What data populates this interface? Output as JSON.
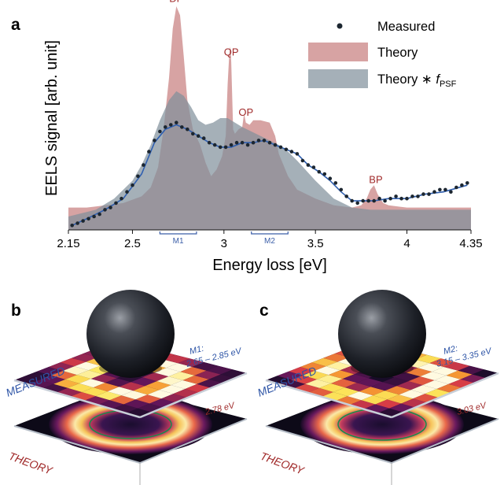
{
  "panels": {
    "a": "a",
    "b": "b",
    "c": "c"
  },
  "chart_data": {
    "type": "line",
    "xlabel": "Energy loss [eV]",
    "ylabel": "EELS signal [arb. unit]",
    "xlim": [
      2.15,
      4.35
    ],
    "ylim": [
      0,
      1
    ],
    "x_ticks": [
      "2.15",
      "2.5",
      "3",
      "3.5",
      "4",
      "4.35"
    ],
    "x_tick_values": [
      2.15,
      2.5,
      3.0,
      3.5,
      4.0,
      4.35
    ],
    "grid": false,
    "legend_position": "top-right",
    "legend": {
      "measured": "Measured",
      "theory": "Theory",
      "theory_psf": "Theory ∗ ",
      "psf_f": "f",
      "psf_sub": "PSF"
    },
    "colors": {
      "theory": "#c98484",
      "theory_alpha": 0.75,
      "psf": "#7f8e9a",
      "psf_alpha": 0.7,
      "fit": "#2f5fb0",
      "measured": "#1c2630",
      "peak_label": "#a02a2a",
      "range": "#3b5ea8"
    },
    "peak_labels": [
      {
        "text": "DP",
        "x": 2.74,
        "y": 1.02
      },
      {
        "text": "QP",
        "x": 3.04,
        "y": 0.78
      },
      {
        "text": "OP",
        "x": 3.12,
        "y": 0.51
      },
      {
        "text": "BP",
        "x": 3.83,
        "y": 0.21
      }
    ],
    "ranges": [
      {
        "label": "M1",
        "from": 2.65,
        "to": 2.85
      },
      {
        "label": "M2",
        "from": 3.15,
        "to": 3.35
      }
    ],
    "series": [
      {
        "name": "Theory",
        "x": [
          2.15,
          2.25,
          2.35,
          2.45,
          2.55,
          2.6,
          2.64,
          2.67,
          2.7,
          2.72,
          2.74,
          2.76,
          2.78,
          2.8,
          2.83,
          2.87,
          2.9,
          2.93,
          2.96,
          2.99,
          3.01,
          3.02,
          3.03,
          3.035,
          3.04,
          3.05,
          3.06,
          3.08,
          3.1,
          3.11,
          3.12,
          3.14,
          3.16,
          3.2,
          3.25,
          3.28,
          3.3,
          3.35,
          3.4,
          3.5,
          3.6,
          3.7,
          3.75,
          3.78,
          3.8,
          3.82,
          3.84,
          3.87,
          3.9,
          4.0,
          4.1,
          4.2,
          4.35
        ],
        "values": [
          0.1,
          0.1,
          0.11,
          0.12,
          0.15,
          0.19,
          0.28,
          0.45,
          0.68,
          0.9,
          1.0,
          0.96,
          0.78,
          0.58,
          0.45,
          0.38,
          0.3,
          0.24,
          0.27,
          0.33,
          0.42,
          0.65,
          0.8,
          0.82,
          0.75,
          0.45,
          0.43,
          0.45,
          0.46,
          0.52,
          0.48,
          0.47,
          0.49,
          0.49,
          0.48,
          0.42,
          0.34,
          0.24,
          0.18,
          0.14,
          0.11,
          0.1,
          0.11,
          0.14,
          0.18,
          0.2,
          0.16,
          0.12,
          0.11,
          0.1,
          0.1,
          0.1,
          0.1
        ]
      },
      {
        "name": "Theory ∗ fPSF",
        "x": [
          2.15,
          2.3,
          2.4,
          2.5,
          2.55,
          2.6,
          2.65,
          2.7,
          2.74,
          2.78,
          2.82,
          2.86,
          2.9,
          2.94,
          2.98,
          3.02,
          3.06,
          3.1,
          3.15,
          3.2,
          3.25,
          3.3,
          3.35,
          3.4,
          3.5,
          3.6,
          3.7,
          3.8,
          3.9,
          4.0,
          4.1,
          4.2,
          4.35
        ],
        "values": [
          0.06,
          0.09,
          0.14,
          0.22,
          0.29,
          0.38,
          0.49,
          0.58,
          0.62,
          0.6,
          0.55,
          0.49,
          0.47,
          0.48,
          0.5,
          0.5,
          0.48,
          0.46,
          0.44,
          0.42,
          0.4,
          0.38,
          0.35,
          0.31,
          0.22,
          0.14,
          0.1,
          0.09,
          0.09,
          0.09,
          0.09,
          0.09,
          0.09
        ]
      },
      {
        "name": "Measured",
        "x": [
          2.17,
          2.2,
          2.23,
          2.26,
          2.29,
          2.32,
          2.35,
          2.38,
          2.41,
          2.44,
          2.47,
          2.5,
          2.53,
          2.56,
          2.59,
          2.62,
          2.65,
          2.68,
          2.71,
          2.74,
          2.77,
          2.8,
          2.83,
          2.86,
          2.89,
          2.92,
          2.95,
          2.98,
          3.01,
          3.04,
          3.07,
          3.1,
          3.13,
          3.16,
          3.19,
          3.22,
          3.25,
          3.28,
          3.31,
          3.34,
          3.37,
          3.4,
          3.43,
          3.46,
          3.49,
          3.52,
          3.55,
          3.58,
          3.61,
          3.64,
          3.67,
          3.7,
          3.73,
          3.76,
          3.79,
          3.82,
          3.85,
          3.88,
          3.91,
          3.94,
          3.97,
          4.0,
          4.03,
          4.06,
          4.09,
          4.12,
          4.15,
          4.18,
          4.21,
          4.24,
          4.27,
          4.3,
          4.33
        ],
        "values": [
          0.02,
          0.03,
          0.04,
          0.05,
          0.06,
          0.07,
          0.09,
          0.1,
          0.12,
          0.14,
          0.17,
          0.2,
          0.24,
          0.29,
          0.35,
          0.4,
          0.44,
          0.46,
          0.47,
          0.48,
          0.46,
          0.45,
          0.43,
          0.42,
          0.41,
          0.39,
          0.38,
          0.37,
          0.37,
          0.38,
          0.39,
          0.39,
          0.38,
          0.39,
          0.4,
          0.4,
          0.39,
          0.38,
          0.37,
          0.36,
          0.35,
          0.34,
          0.31,
          0.29,
          0.28,
          0.26,
          0.25,
          0.23,
          0.21,
          0.18,
          0.15,
          0.13,
          0.12,
          0.13,
          0.13,
          0.13,
          0.14,
          0.13,
          0.14,
          0.15,
          0.14,
          0.14,
          0.15,
          0.15,
          0.16,
          0.16,
          0.17,
          0.18,
          0.18,
          0.17,
          0.19,
          0.2,
          0.21
        ]
      },
      {
        "name": "Fit",
        "x": [
          2.17,
          2.25,
          2.35,
          2.45,
          2.55,
          2.62,
          2.68,
          2.74,
          2.8,
          2.86,
          2.92,
          2.98,
          3.04,
          3.1,
          3.16,
          3.22,
          3.28,
          3.34,
          3.4,
          3.46,
          3.52,
          3.58,
          3.64,
          3.7,
          3.76,
          3.82,
          3.9,
          4.0,
          4.1,
          4.2,
          4.33
        ],
        "values": [
          0.02,
          0.05,
          0.09,
          0.14,
          0.25,
          0.39,
          0.45,
          0.47,
          0.45,
          0.42,
          0.39,
          0.37,
          0.37,
          0.39,
          0.39,
          0.4,
          0.38,
          0.36,
          0.34,
          0.29,
          0.26,
          0.22,
          0.17,
          0.13,
          0.13,
          0.13,
          0.14,
          0.14,
          0.16,
          0.17,
          0.2
        ]
      }
    ]
  },
  "panel_b": {
    "measured_label": "MEASURED",
    "theory_label": "THEORY",
    "map_label": "M1:",
    "range_label": "2.65 – 2.85 eV",
    "theory_energy": "2.78 eV"
  },
  "panel_c": {
    "measured_label": "MEASURED",
    "theory_label": "THEORY",
    "map_label": "M2:",
    "range_label": "3.15 – 3.35 eV",
    "theory_energy": "3.03 eV"
  }
}
